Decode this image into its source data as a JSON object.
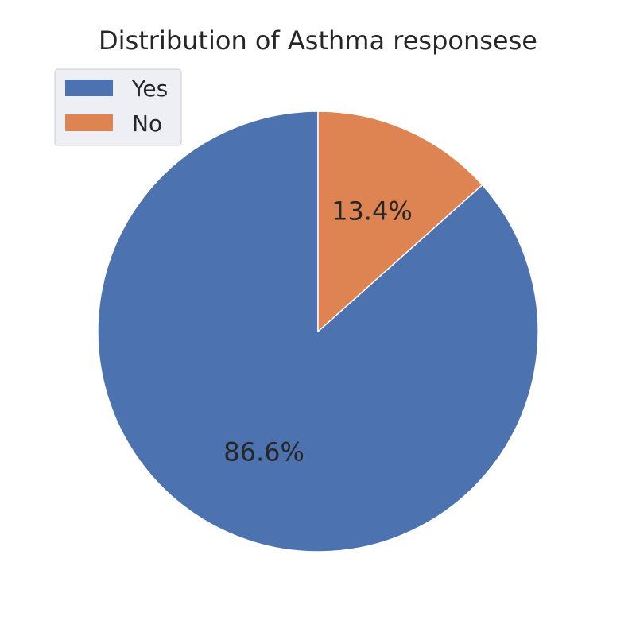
{
  "chart_data": {
    "type": "pie",
    "title": "Distribution of Asthma responsese",
    "categories": [
      "Yes",
      "No"
    ],
    "values": [
      86.6,
      13.4
    ],
    "labels": [
      "86.6%",
      "13.4%"
    ],
    "colors": [
      "#4c72b0",
      "#dd8452"
    ],
    "legend_position": "top-left"
  }
}
